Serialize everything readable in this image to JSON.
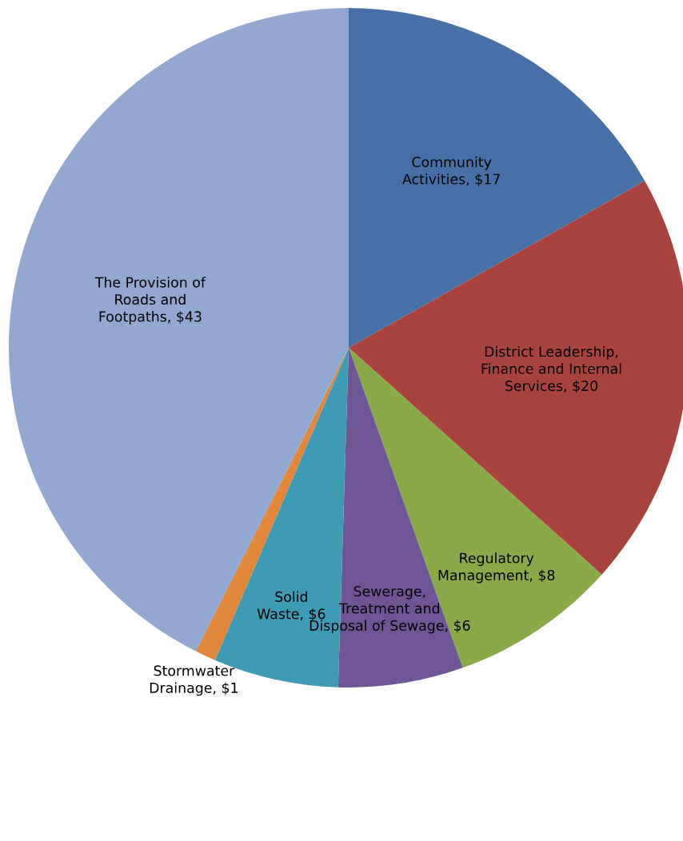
{
  "chart_data": {
    "type": "pie",
    "categories": [
      "Community\nActivities",
      "District Leadership,\nFinance and Internal\nServices",
      "Regulatory\nManagement",
      "Sewerage,\nTreatment and\nDisposal of Sewage",
      "Solid\nWaste",
      "Stormwater\nDrainage",
      "The Provision of\nRoads and\nFootpaths"
    ],
    "values": [
      17,
      20,
      8,
      6,
      6,
      1,
      43
    ],
    "value_labels": [
      "$17",
      "$20",
      "$8",
      "$6",
      "$6",
      "$1",
      "$43"
    ],
    "colors": [
      "#4670a6",
      "#a9433f",
      "#8aaa4a",
      "#6f5596",
      "#3f9ab3",
      "#e0873b",
      "#92a8d1"
    ],
    "legend": false
  }
}
